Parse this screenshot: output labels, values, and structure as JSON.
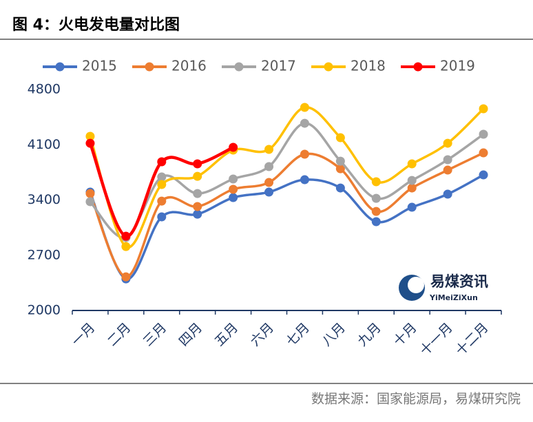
{
  "chart_data": {
    "type": "line",
    "title": "图 4：火电发电量对比图",
    "source": "数据来源：国家能源局，易煤研究院",
    "watermark": "易煤资讯",
    "watermark_sub": "YiMeiZiXun",
    "categories": [
      "一月",
      "二月",
      "三月",
      "四月",
      "五月",
      "六月",
      "七月",
      "八月",
      "九月",
      "十月",
      "十一月",
      "十二月"
    ],
    "series": [
      {
        "name": "2015",
        "color": "#4472c4",
        "values": [
          3500,
          2400,
          3186,
          3220,
          3430,
          3500,
          3657,
          3552,
          3125,
          3308,
          3474,
          3718
        ]
      },
      {
        "name": "2016",
        "color": "#ed7d31",
        "values": [
          3482,
          2426,
          3386,
          3317,
          3535,
          3622,
          3980,
          3796,
          3255,
          3552,
          3779,
          3997
        ]
      },
      {
        "name": "2017",
        "color": "#a5a5a5",
        "values": [
          3378,
          2924,
          3692,
          3482,
          3666,
          3823,
          4372,
          3892,
          3421,
          3648,
          3910,
          4233
        ]
      },
      {
        "name": "2018",
        "color": "#ffc000",
        "values": [
          4207,
          2810,
          3596,
          3700,
          4032,
          4041,
          4573,
          4189,
          3631,
          3858,
          4119,
          4556
        ]
      },
      {
        "name": "2019",
        "color": "#ff0000",
        "values": [
          4119,
          2941,
          3884,
          3858,
          4067,
          null,
          null,
          null,
          null,
          null,
          null,
          null
        ]
      }
    ],
    "ylim": [
      2000,
      4800
    ],
    "yticks": [
      2000,
      2700,
      3400,
      4100,
      4800
    ],
    "legend": "top",
    "grid": false
  }
}
